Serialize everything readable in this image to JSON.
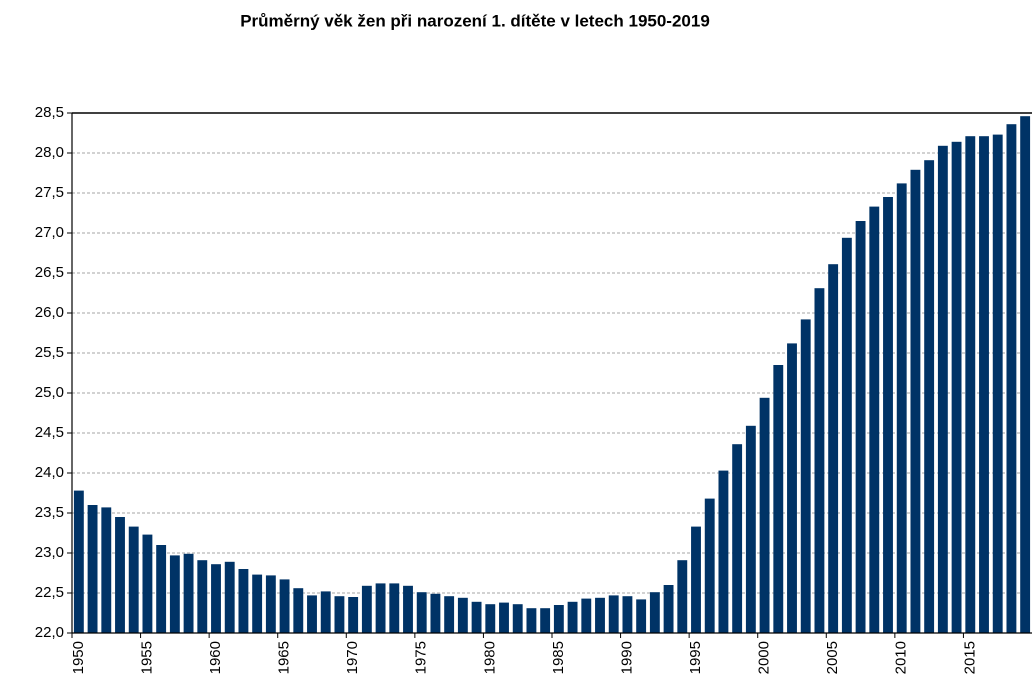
{
  "chart_data": {
    "type": "bar",
    "title": "Průměrný věk žen při narození 1. dítěte v letech 1950-2019",
    "categories": [
      "1950",
      null,
      null,
      null,
      null,
      "1955",
      null,
      null,
      null,
      null,
      "1960",
      null,
      null,
      null,
      null,
      "1965",
      null,
      null,
      null,
      null,
      "1970",
      null,
      null,
      null,
      null,
      "1975",
      null,
      null,
      null,
      null,
      "1980",
      null,
      null,
      null,
      null,
      "1985",
      null,
      null,
      null,
      null,
      "1990",
      null,
      null,
      null,
      null,
      "1995",
      null,
      null,
      null,
      null,
      "2000",
      null,
      null,
      null,
      null,
      "2005",
      null,
      null,
      null,
      null,
      "2010",
      null,
      null,
      null,
      null,
      "2015",
      null,
      null,
      null,
      null
    ],
    "values": [
      23.78,
      23.6,
      23.57,
      23.45,
      23.33,
      23.23,
      23.1,
      22.97,
      22.99,
      22.91,
      22.86,
      22.89,
      22.8,
      22.73,
      22.72,
      22.67,
      22.56,
      22.47,
      22.52,
      22.46,
      22.45,
      22.59,
      22.62,
      22.62,
      22.59,
      22.51,
      22.49,
      22.46,
      22.44,
      22.39,
      22.36,
      22.38,
      22.36,
      22.31,
      22.31,
      22.35,
      22.39,
      22.43,
      22.44,
      22.47,
      22.46,
      22.42,
      22.51,
      22.6,
      22.91,
      23.33,
      23.68,
      24.03,
      24.36,
      24.59,
      24.94,
      25.35,
      25.62,
      25.92,
      26.31,
      26.61,
      26.94,
      27.15,
      27.33,
      27.45,
      27.62,
      27.79,
      27.91,
      28.09,
      28.14,
      28.21,
      28.21,
      28.23,
      28.36,
      28.46
    ],
    "color": "#003366",
    "ylim": [
      22.0,
      28.5
    ],
    "yticks": [
      {
        "value": 22.0,
        "label": "22,0"
      },
      {
        "value": 22.5,
        "label": "22,5"
      },
      {
        "value": 23.0,
        "label": "23,0"
      },
      {
        "value": 23.5,
        "label": "23,5"
      },
      {
        "value": 24.0,
        "label": "24,0"
      },
      {
        "value": 24.5,
        "label": "24,5"
      },
      {
        "value": 25.0,
        "label": "25,0"
      },
      {
        "value": 25.5,
        "label": "25,5"
      },
      {
        "value": 26.0,
        "label": "26,0"
      },
      {
        "value": 26.5,
        "label": "26,5"
      },
      {
        "value": 27.0,
        "label": "27,0"
      },
      {
        "value": 27.5,
        "label": "27,5"
      },
      {
        "value": 28.0,
        "label": "28,0"
      },
      {
        "value": 28.5,
        "label": "28,5"
      }
    ],
    "grid": true
  }
}
